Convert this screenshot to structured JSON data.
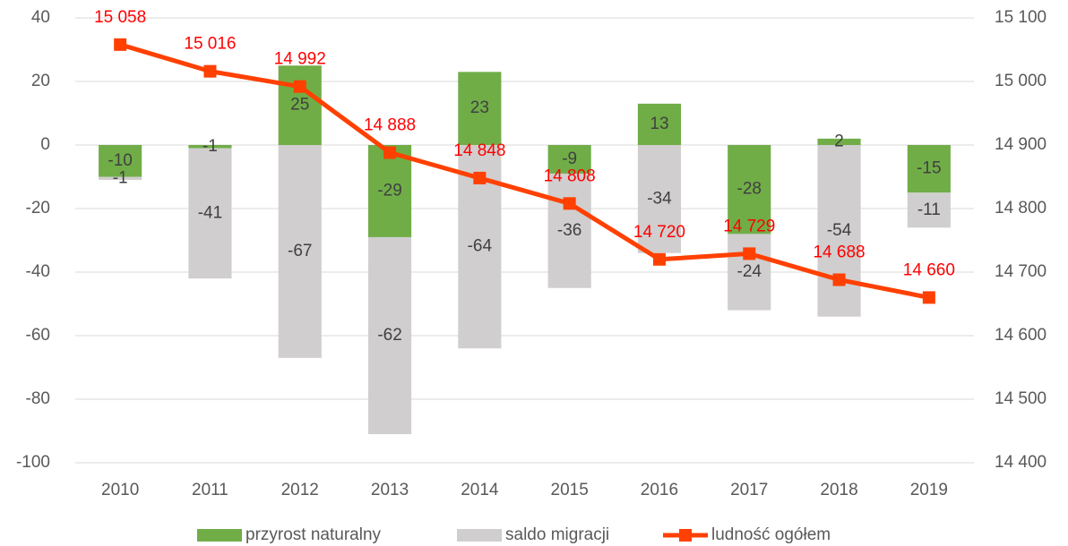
{
  "chart_data": {
    "type": "bar",
    "stacked": true,
    "categories": [
      "2010",
      "2011",
      "2012",
      "2013",
      "2014",
      "2015",
      "2016",
      "2017",
      "2018",
      "2019"
    ],
    "series": [
      {
        "name": "przyrost naturalny",
        "type": "bar",
        "color": "#70ad47",
        "values": [
          -10,
          -1,
          25,
          -29,
          23,
          -9,
          13,
          -28,
          2,
          -15
        ]
      },
      {
        "name": "saldo migracji",
        "type": "bar",
        "color": "#d0cece",
        "values": [
          -1,
          -41,
          -67,
          -62,
          -64,
          -36,
          -34,
          -24,
          -54,
          -11
        ]
      },
      {
        "name": "ludność ogółem",
        "type": "line",
        "axis": "y2",
        "color": "#ff4000",
        "marker": "square",
        "values": [
          15058,
          15016,
          14992,
          14888,
          14848,
          14808,
          14720,
          14729,
          14688,
          14660
        ],
        "value_labels": [
          "15 058",
          "15 016",
          "14 992",
          "14 888",
          "14 848",
          "14 808",
          "14 720",
          "14 729",
          "14 688",
          "14 660"
        ]
      }
    ],
    "ylim": [
      -100,
      40
    ],
    "yticks": [
      -100,
      -80,
      -60,
      -40,
      -20,
      0,
      20,
      40
    ],
    "y2lim": [
      14400,
      15100
    ],
    "y2ticks": [
      {
        "value": 14400,
        "label": "14 400"
      },
      {
        "value": 14500,
        "label": "14 500"
      },
      {
        "value": 14600,
        "label": "14 600"
      },
      {
        "value": 14700,
        "label": "14 700"
      },
      {
        "value": 14800,
        "label": "14 800"
      },
      {
        "value": 14900,
        "label": "14 900"
      },
      {
        "value": 15000,
        "label": "15 000"
      },
      {
        "value": 15100,
        "label": "15 100"
      }
    ],
    "grid": true,
    "legend": "bottom"
  }
}
